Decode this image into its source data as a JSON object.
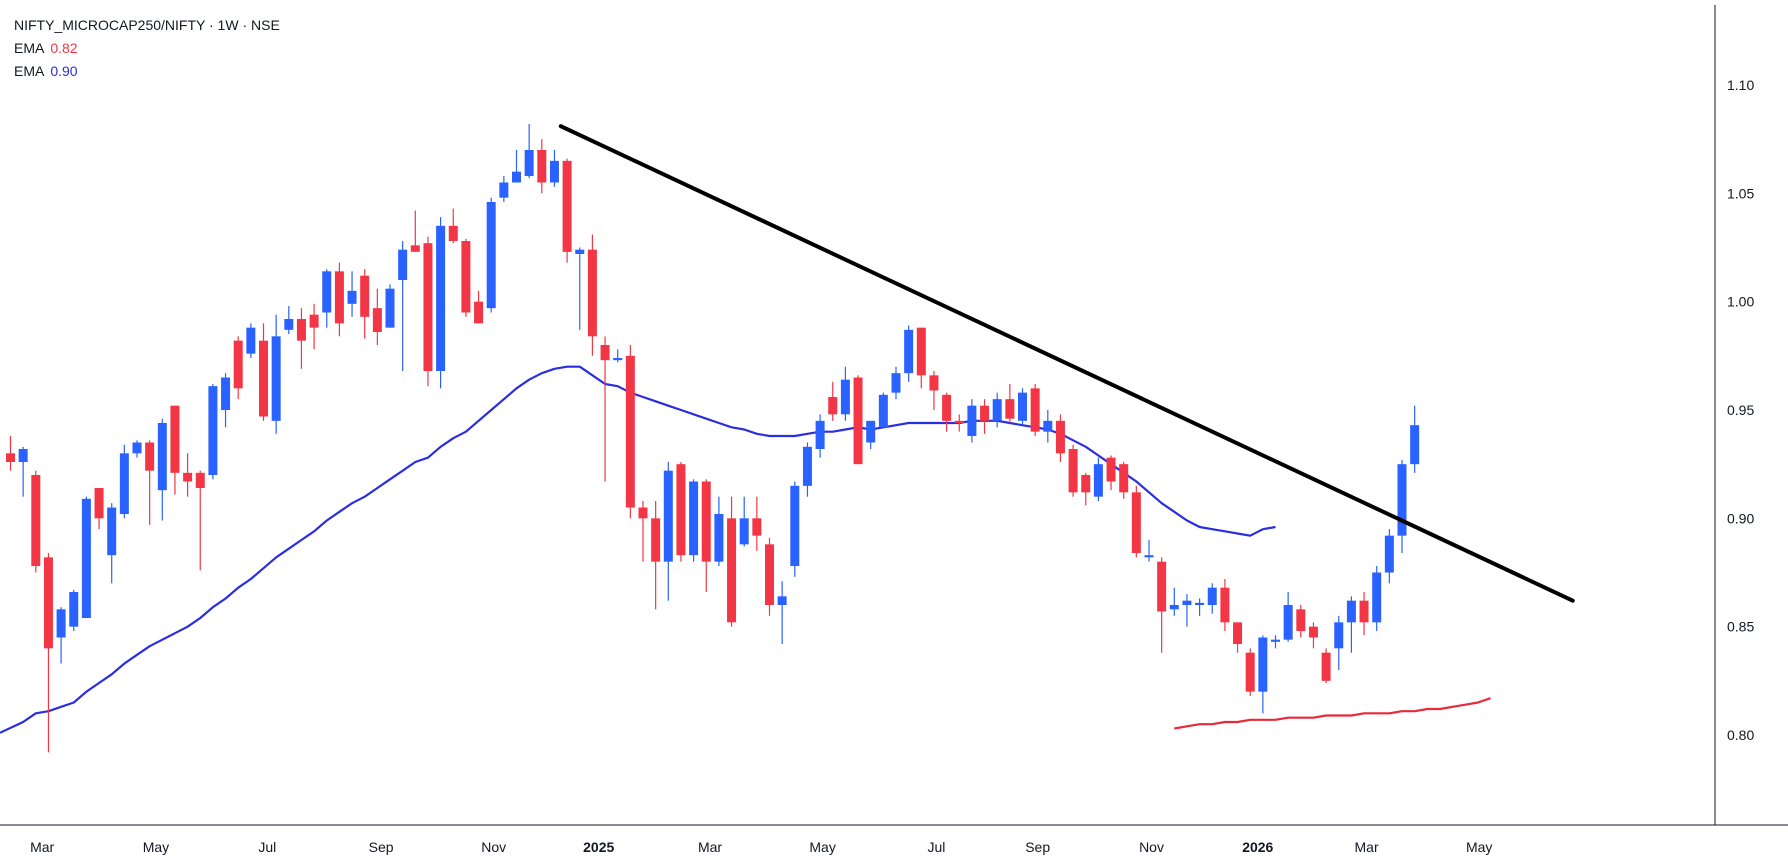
{
  "legend": {
    "title": "NIFTY_MICROCAP250/NIFTY · 1W · NSE",
    "ema_a_label": "EMA",
    "ema_a_value": "0.82",
    "ema_b_label": "EMA",
    "ema_b_value": "0.90"
  },
  "colors": {
    "up": "#2962ff",
    "down": "#f23645",
    "ema_blue": "#2a2ee0",
    "ema_red": "#e8293a",
    "trendline": "#000000",
    "axis": "#131722"
  },
  "chart_data": {
    "type": "candlestick",
    "interval": "1W",
    "ylim": [
      0.765,
      1.135
    ],
    "y_ticks": [
      0.8,
      0.85,
      0.9,
      0.95,
      1.0,
      1.05,
      1.1
    ],
    "y_tick_labels": [
      "0.80",
      "0.85",
      "0.90",
      "0.95",
      "1.00",
      "1.05",
      "1.10"
    ],
    "x_ticks": [
      {
        "index": 2.5,
        "label": "Mar",
        "bold": false
      },
      {
        "index": 11.5,
        "label": "May",
        "bold": false
      },
      {
        "index": 20.3,
        "label": "Jul",
        "bold": false
      },
      {
        "index": 29.3,
        "label": "Sep",
        "bold": false
      },
      {
        "index": 38.2,
        "label": "Nov",
        "bold": false
      },
      {
        "index": 46.5,
        "label": "2025",
        "bold": true
      },
      {
        "index": 55.3,
        "label": "Mar",
        "bold": false
      },
      {
        "index": 64.2,
        "label": "May",
        "bold": false
      },
      {
        "index": 73.2,
        "label": "Jul",
        "bold": false
      },
      {
        "index": 81.2,
        "label": "Sep",
        "bold": false
      },
      {
        "index": 90.2,
        "label": "Nov",
        "bold": false
      },
      {
        "index": 98.6,
        "label": "2026",
        "bold": true
      },
      {
        "index": 107.2,
        "label": "Mar",
        "bold": false
      },
      {
        "index": 116.1,
        "label": "May",
        "bold": false
      }
    ],
    "candles": [
      [
        0.93,
        0.926,
        0.938,
        0.922
      ],
      [
        0.926,
        0.932,
        0.933,
        0.91
      ],
      [
        0.92,
        0.878,
        0.922,
        0.875
      ],
      [
        0.882,
        0.84,
        0.884,
        0.792
      ],
      [
        0.845,
        0.858,
        0.859,
        0.833
      ],
      [
        0.85,
        0.866,
        0.867,
        0.848
      ],
      [
        0.854,
        0.909,
        0.91,
        0.854
      ],
      [
        0.914,
        0.9,
        0.914,
        0.895
      ],
      [
        0.883,
        0.905,
        0.907,
        0.87
      ],
      [
        0.902,
        0.93,
        0.934,
        0.9
      ],
      [
        0.93,
        0.935,
        0.936,
        0.928
      ],
      [
        0.935,
        0.922,
        0.936,
        0.897
      ],
      [
        0.913,
        0.944,
        0.946,
        0.899
      ],
      [
        0.952,
        0.921,
        0.952,
        0.911
      ],
      [
        0.921,
        0.917,
        0.93,
        0.91
      ],
      [
        0.921,
        0.914,
        0.922,
        0.876
      ],
      [
        0.92,
        0.961,
        0.962,
        0.918
      ],
      [
        0.95,
        0.965,
        0.967,
        0.942
      ],
      [
        0.982,
        0.96,
        0.984,
        0.955
      ],
      [
        0.976,
        0.988,
        0.99,
        0.974
      ],
      [
        0.982,
        0.947,
        0.99,
        0.945
      ],
      [
        0.945,
        0.984,
        0.994,
        0.939
      ],
      [
        0.987,
        0.992,
        0.998,
        0.985
      ],
      [
        0.992,
        0.982,
        0.997,
        0.969
      ],
      [
        0.994,
        0.988,
        0.999,
        0.978
      ],
      [
        0.995,
        1.014,
        1.015,
        0.988
      ],
      [
        1.014,
        0.99,
        1.018,
        0.984
      ],
      [
        0.999,
        1.005,
        1.014,
        0.993
      ],
      [
        1.012,
        0.993,
        1.015,
        0.983
      ],
      [
        0.997,
        0.986,
        1.006,
        0.98
      ],
      [
        0.988,
        1.006,
        1.008,
        0.988
      ],
      [
        1.01,
        1.024,
        1.028,
        0.968
      ],
      [
        1.026,
        1.023,
        1.042,
        1.023
      ],
      [
        1.027,
        0.968,
        1.03,
        0.961
      ],
      [
        0.968,
        1.035,
        1.039,
        0.96
      ],
      [
        1.035,
        1.028,
        1.043,
        1.027
      ],
      [
        1.028,
        0.995,
        1.029,
        0.993
      ],
      [
        1.0,
        0.99,
        1.005,
        0.99
      ],
      [
        0.997,
        1.046,
        1.048,
        0.995
      ],
      [
        1.048,
        1.055,
        1.058,
        1.046
      ],
      [
        1.055,
        1.06,
        1.07,
        1.055
      ],
      [
        1.058,
        1.07,
        1.082,
        1.057
      ],
      [
        1.07,
        1.055,
        1.075,
        1.05
      ],
      [
        1.055,
        1.065,
        1.07,
        1.053
      ],
      [
        1.065,
        1.023,
        1.066,
        1.018
      ],
      [
        1.022,
        1.024,
        1.025,
        0.987
      ],
      [
        1.024,
        0.984,
        1.031,
        0.975
      ],
      [
        0.98,
        0.973,
        0.984,
        0.917
      ],
      [
        0.973,
        0.974,
        0.978,
        0.972
      ],
      [
        0.975,
        0.905,
        0.98,
        0.9
      ],
      [
        0.905,
        0.9,
        0.908,
        0.88
      ],
      [
        0.9,
        0.88,
        0.908,
        0.858
      ],
      [
        0.88,
        0.922,
        0.926,
        0.862
      ],
      [
        0.925,
        0.883,
        0.926,
        0.88
      ],
      [
        0.883,
        0.917,
        0.918,
        0.88
      ],
      [
        0.917,
        0.88,
        0.918,
        0.866
      ],
      [
        0.88,
        0.902,
        0.91,
        0.878
      ],
      [
        0.9,
        0.852,
        0.91,
        0.85
      ],
      [
        0.888,
        0.9,
        0.91,
        0.887
      ],
      [
        0.9,
        0.892,
        0.91,
        0.885
      ],
      [
        0.888,
        0.86,
        0.891,
        0.855
      ],
      [
        0.86,
        0.864,
        0.871,
        0.842
      ],
      [
        0.878,
        0.915,
        0.917,
        0.873
      ],
      [
        0.915,
        0.933,
        0.935,
        0.91
      ],
      [
        0.932,
        0.945,
        0.948,
        0.928
      ],
      [
        0.956,
        0.948,
        0.963,
        0.945
      ],
      [
        0.948,
        0.964,
        0.97,
        0.945
      ],
      [
        0.965,
        0.925,
        0.966,
        0.925
      ],
      [
        0.935,
        0.945,
        0.945,
        0.932
      ],
      [
        0.942,
        0.957,
        0.958,
        0.942
      ],
      [
        0.958,
        0.967,
        0.97,
        0.955
      ],
      [
        0.967,
        0.987,
        0.989,
        0.963
      ],
      [
        0.988,
        0.966,
        0.988,
        0.96
      ],
      [
        0.966,
        0.959,
        0.968,
        0.95
      ],
      [
        0.957,
        0.945,
        0.958,
        0.94
      ],
      [
        0.945,
        0.944,
        0.948,
        0.94
      ],
      [
        0.938,
        0.952,
        0.955,
        0.935
      ],
      [
        0.952,
        0.945,
        0.955,
        0.939
      ],
      [
        0.945,
        0.955,
        0.958,
        0.942
      ],
      [
        0.955,
        0.946,
        0.962,
        0.944
      ],
      [
        0.945,
        0.958,
        0.96,
        0.943
      ],
      [
        0.96,
        0.94,
        0.962,
        0.938
      ],
      [
        0.94,
        0.945,
        0.95,
        0.935
      ],
      [
        0.945,
        0.93,
        0.948,
        0.926
      ],
      [
        0.932,
        0.912,
        0.934,
        0.91
      ],
      [
        0.92,
        0.912,
        0.921,
        0.906
      ],
      [
        0.91,
        0.925,
        0.928,
        0.908
      ],
      [
        0.928,
        0.917,
        0.929,
        0.913
      ],
      [
        0.925,
        0.912,
        0.926,
        0.909
      ],
      [
        0.912,
        0.884,
        0.915,
        0.882
      ],
      [
        0.882,
        0.883,
        0.89,
        0.88
      ],
      [
        0.88,
        0.857,
        0.882,
        0.838
      ],
      [
        0.858,
        0.86,
        0.868,
        0.855
      ],
      [
        0.86,
        0.862,
        0.865,
        0.85
      ],
      [
        0.86,
        0.861,
        0.863,
        0.855
      ],
      [
        0.86,
        0.868,
        0.87,
        0.856
      ],
      [
        0.868,
        0.852,
        0.872,
        0.848
      ],
      [
        0.852,
        0.842,
        0.852,
        0.838
      ],
      [
        0.838,
        0.82,
        0.84,
        0.818
      ],
      [
        0.82,
        0.845,
        0.846,
        0.81
      ],
      [
        0.843,
        0.844,
        0.846,
        0.84
      ],
      [
        0.844,
        0.86,
        0.866,
        0.843
      ],
      [
        0.858,
        0.848,
        0.86,
        0.845
      ],
      [
        0.85,
        0.845,
        0.852,
        0.84
      ],
      [
        0.838,
        0.825,
        0.84,
        0.824
      ],
      [
        0.84,
        0.852,
        0.855,
        0.83
      ],
      [
        0.852,
        0.862,
        0.864,
        0.838
      ],
      [
        0.862,
        0.852,
        0.866,
        0.846
      ],
      [
        0.852,
        0.875,
        0.878,
        0.848
      ],
      [
        0.875,
        0.892,
        0.895,
        0.87
      ],
      [
        0.892,
        0.925,
        0.927,
        0.884
      ],
      [
        0.925,
        0.943,
        0.952,
        0.921
      ]
    ],
    "ema_blue": [
      0.801,
      0.806,
      0.81,
      0.811,
      0.813,
      0.815,
      0.82,
      0.824,
      0.828,
      0.833,
      0.837,
      0.841,
      0.844,
      0.847,
      0.85,
      0.854,
      0.859,
      0.863,
      0.868,
      0.872,
      0.877,
      0.882,
      0.886,
      0.89,
      0.894,
      0.899,
      0.903,
      0.907,
      0.91,
      0.914,
      0.918,
      0.922,
      0.926,
      0.928,
      0.933,
      0.937,
      0.94,
      0.945,
      0.95,
      0.955,
      0.96,
      0.964,
      0.967,
      0.969,
      0.97,
      0.97,
      0.966,
      0.962,
      0.961,
      0.958,
      0.956,
      0.954,
      0.952,
      0.95,
      0.948,
      0.946,
      0.944,
      0.942,
      0.941,
      0.939,
      0.938,
      0.938,
      0.938,
      0.939,
      0.94,
      0.94,
      0.941,
      0.942,
      0.941,
      0.942,
      0.943,
      0.944,
      0.944,
      0.944,
      0.944,
      0.944,
      0.945,
      0.945,
      0.945,
      0.944,
      0.943,
      0.942,
      0.941,
      0.939,
      0.936,
      0.933,
      0.929,
      0.925,
      0.921,
      0.917,
      0.912,
      0.907,
      0.903,
      0.899,
      0.896,
      0.895,
      0.894,
      0.893,
      0.892,
      0.895,
      0.896
    ],
    "ema_blue_start_index": 0,
    "ema_blue_end_x": 118.8,
    "ema_red": [
      0.803,
      0.804,
      0.805,
      0.805,
      0.806,
      0.806,
      0.807,
      0.807,
      0.807,
      0.808,
      0.808,
      0.808,
      0.809,
      0.809,
      0.809,
      0.81,
      0.81,
      0.81,
      0.811,
      0.811,
      0.812,
      0.812,
      0.813,
      0.814,
      0.815,
      0.817
    ],
    "ema_red_start_index": 92,
    "trendline": {
      "start": [
        43.5,
        1.081
      ],
      "end": [
        123.5,
        0.862
      ]
    }
  }
}
